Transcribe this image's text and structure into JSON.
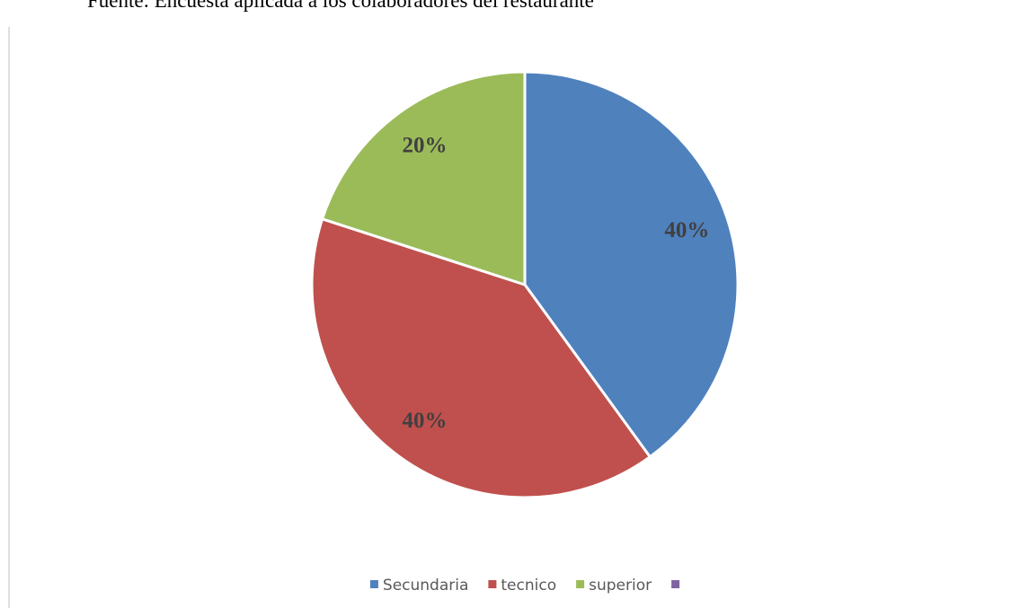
{
  "chart_data": {
    "type": "pie",
    "source": "Fuente: Encuesta aplicada a los colaboradores del restaurante",
    "categories": [
      "Secundaria",
      "tecnico",
      "superior",
      null
    ],
    "values": [
      40,
      40,
      20,
      0
    ],
    "value_labels": [
      "40%",
      "40%",
      "20%",
      null
    ],
    "colors": [
      "#4f81bd",
      "#c0504d",
      "#9bbb59",
      "#8064a2"
    ],
    "legend": "bottom"
  }
}
